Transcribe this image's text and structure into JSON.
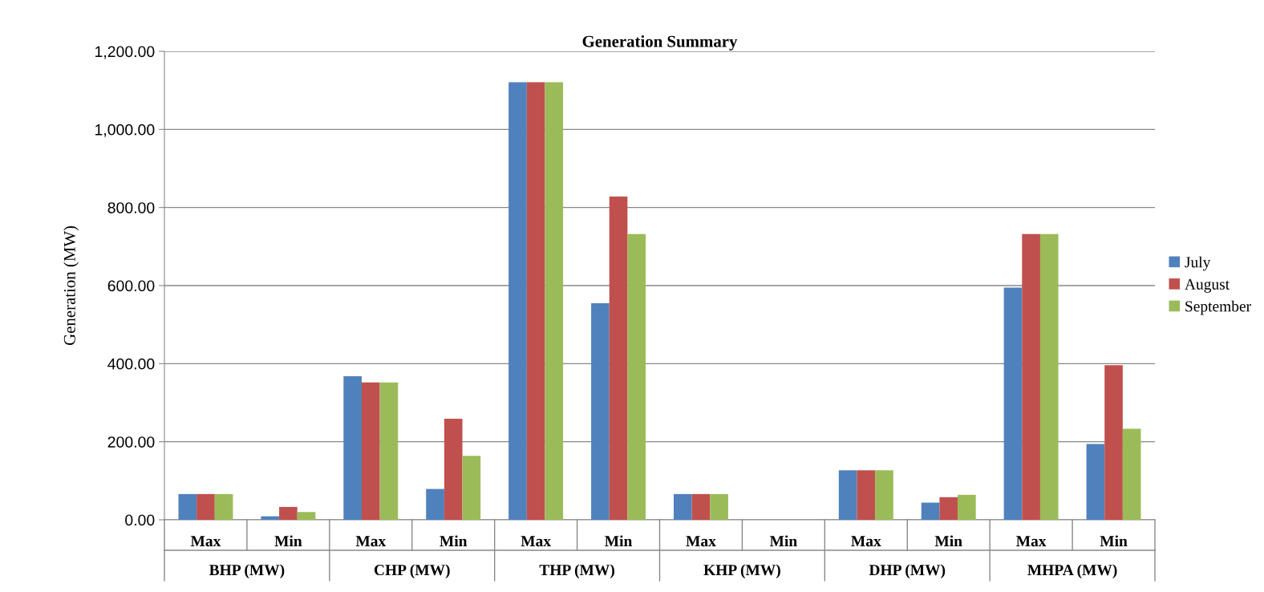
{
  "chart_data": {
    "type": "bar",
    "title": "Generation Summary",
    "ylabel": "Generation (MW)",
    "categories": [
      "Max",
      "Min",
      "Max",
      "Min",
      "Max",
      "Min",
      "Max",
      "Min",
      "Max",
      "Min",
      "Max",
      "Min"
    ],
    "annotations": [
      "BHP (MW)",
      "CHP (MW)",
      "THP (MW)",
      "KHP (MW)",
      "DHP (MW)",
      "MHPA (MW)"
    ],
    "series": [
      {
        "name": "July",
        "color": "#4f81bd",
        "values": [
          66,
          9,
          368,
          79,
          1121,
          555,
          66,
          0,
          127,
          44,
          595,
          194
        ]
      },
      {
        "name": "August",
        "color": "#c0504d",
        "values": [
          66,
          33,
          352,
          259,
          1121,
          828,
          66,
          0,
          127,
          58,
          732,
          396
        ]
      },
      {
        "name": "September",
        "color": "#9bbb59",
        "values": [
          66,
          20,
          352,
          164,
          1121,
          732,
          66,
          0,
          127,
          64,
          732,
          233
        ]
      }
    ],
    "ylim": [
      0,
      1200
    ],
    "yticks": [
      {
        "value": 0,
        "label": "0.00"
      },
      {
        "value": 200,
        "label": "200.00"
      },
      {
        "value": 400,
        "label": "400.00"
      },
      {
        "value": 600,
        "label": "600.00"
      },
      {
        "value": 800,
        "label": "800.00"
      },
      {
        "value": 1000,
        "label": "1,000.00"
      },
      {
        "value": 1200,
        "label": "1,200.00"
      }
    ],
    "grid": "y",
    "legend": "right"
  }
}
